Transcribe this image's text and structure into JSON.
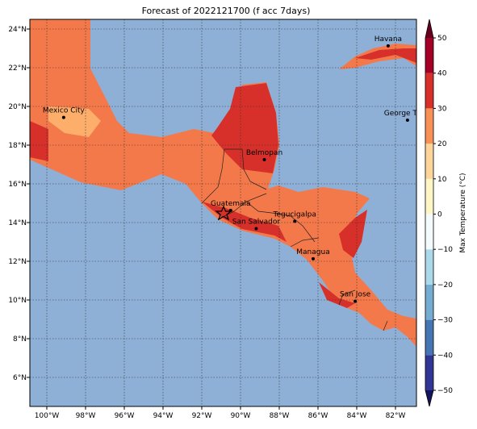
{
  "title": "Forecast of 2022121700 (f acc 7days)",
  "map": {
    "xlim": [
      -100.875,
      -80.917
    ],
    "ylim": [
      4.5,
      24.5
    ],
    "xticks": [
      {
        "value": -100,
        "label": "100°W"
      },
      {
        "value": -98,
        "label": "98°W"
      },
      {
        "value": -96,
        "label": "96°W"
      },
      {
        "value": -94,
        "label": "94°W"
      },
      {
        "value": -92,
        "label": "92°W"
      },
      {
        "value": -90,
        "label": "90°W"
      },
      {
        "value": -88,
        "label": "88°W"
      },
      {
        "value": -86,
        "label": "86°W"
      },
      {
        "value": -84,
        "label": "84°W"
      },
      {
        "value": -82,
        "label": "82°W"
      }
    ],
    "yticks": [
      {
        "value": 6,
        "label": "6°N"
      },
      {
        "value": 8,
        "label": "8°N"
      },
      {
        "value": 10,
        "label": "10°N"
      },
      {
        "value": 12,
        "label": "12°N"
      },
      {
        "value": 14,
        "label": "14°N"
      },
      {
        "value": 16,
        "label": "16°N"
      },
      {
        "value": 18,
        "label": "18°N"
      },
      {
        "value": 20,
        "label": "20°N"
      },
      {
        "value": 22,
        "label": "22°N"
      },
      {
        "value": 24,
        "label": "24°N"
      }
    ],
    "cities": [
      {
        "name": "Mexico City",
        "lon": -99.13,
        "lat": 19.43
      },
      {
        "name": "Havana",
        "lon": -82.38,
        "lat": 23.13
      },
      {
        "name": "George Town",
        "lon": -81.38,
        "lat": 19.29
      },
      {
        "name": "Belmopan",
        "lon": -88.77,
        "lat": 17.25
      },
      {
        "name": "Guatemala",
        "lon": -90.51,
        "lat": 14.63
      },
      {
        "name": "San Salvador",
        "lon": -89.19,
        "lat": 13.69
      },
      {
        "name": "Tegucigalpa",
        "lon": -87.2,
        "lat": 14.07
      },
      {
        "name": "Managua",
        "lon": -86.25,
        "lat": 12.13
      },
      {
        "name": "San Jose",
        "lon": -84.08,
        "lat": 9.93
      }
    ]
  },
  "colorbar": {
    "label": "Max Temperature (°C)",
    "lim": [
      -50,
      50
    ],
    "ticks": [
      {
        "value": -50,
        "label": "−50"
      },
      {
        "value": -40,
        "label": "−40"
      },
      {
        "value": -30,
        "label": "−30"
      },
      {
        "value": -20,
        "label": "−20"
      },
      {
        "value": -10,
        "label": "−10"
      },
      0,
      10,
      20,
      30,
      40,
      50
    ],
    "colors": [
      "#313695",
      "#4575b4",
      "#74add1",
      "#abd9e9",
      "#f4fbfd",
      "#fef6c6",
      "#fdd49a",
      "#f99157",
      "#d7302a",
      "#a50026"
    ],
    "under_color": "#14145e",
    "over_color": "#67001f"
  }
}
